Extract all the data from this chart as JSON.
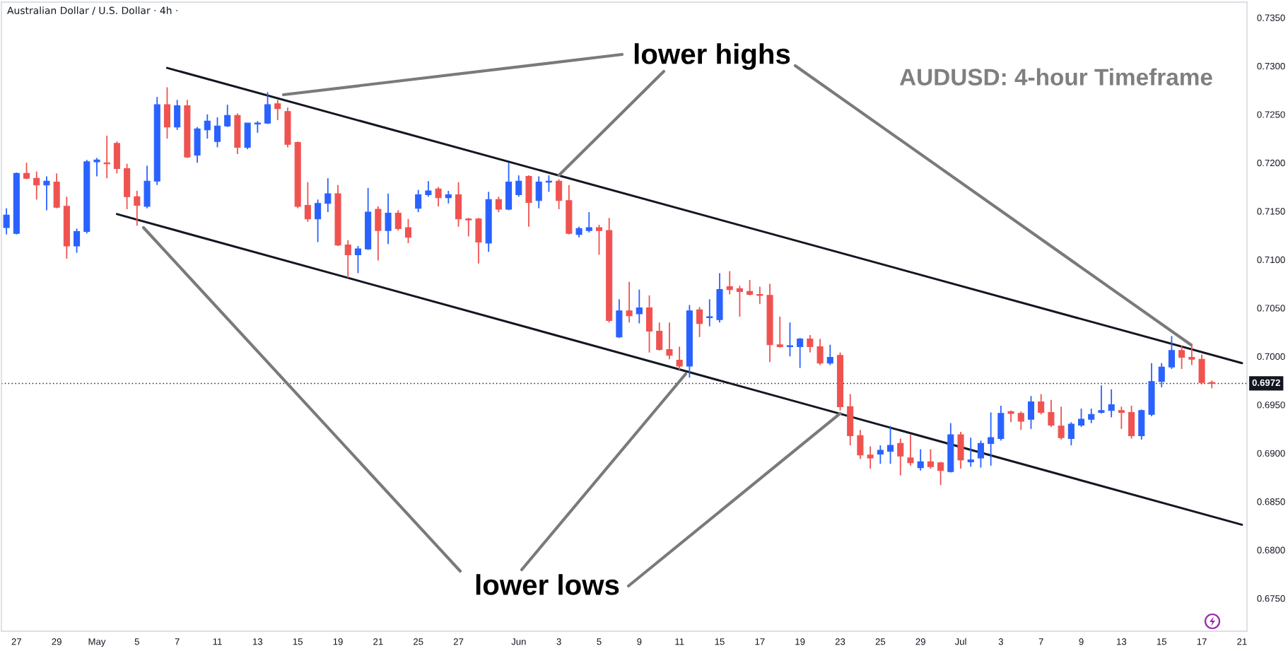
{
  "chart_data": {
    "type": "candlestick",
    "title": "AUDUSD: 4-hour Timeframe",
    "subtitle": "Australian Dollar / U.S. Dollar · 4h ·",
    "categories": [
      null,
      "27",
      null,
      null,
      null,
      "29",
      null,
      null,
      null,
      "May",
      null,
      null,
      null,
      "5",
      null,
      null,
      null,
      "7",
      null,
      null,
      null,
      "11",
      null,
      null,
      null,
      "13",
      null,
      null,
      null,
      "15",
      null,
      null,
      null,
      "19",
      null,
      null,
      null,
      "21",
      null,
      null,
      null,
      "25",
      null,
      null,
      null,
      "27",
      null,
      null,
      null,
      null,
      null,
      "Jun",
      null,
      null,
      null,
      "3",
      null,
      null,
      null,
      "5",
      null,
      null,
      null,
      "9",
      null,
      null,
      null,
      "11",
      null,
      null,
      null,
      "15",
      null,
      null,
      null,
      "17",
      null,
      null,
      null,
      "19",
      null,
      null,
      null,
      "23",
      null,
      null,
      null,
      "25",
      null,
      null,
      null,
      "29",
      null,
      null,
      null,
      "Jul",
      null,
      null,
      null,
      "3",
      null,
      null,
      null,
      "7",
      null,
      null,
      null,
      "9",
      null,
      null,
      null,
      "13",
      null,
      null,
      null,
      "15",
      null,
      null,
      null,
      "17",
      null,
      null,
      null,
      "21"
    ],
    "ohlc": [
      [
        0.7133,
        0.7153,
        0.7126,
        0.7146
      ],
      [
        0.7127,
        0.719,
        0.7126,
        0.7189
      ],
      [
        0.7189,
        0.72,
        0.7183,
        0.7184
      ],
      [
        0.7184,
        0.7191,
        0.7162,
        0.7177
      ],
      [
        0.7177,
        0.7186,
        0.7151,
        0.7181
      ],
      [
        0.718,
        0.7189,
        0.7153,
        0.7154
      ],
      [
        0.7155,
        0.7165,
        0.7101,
        0.7114
      ],
      [
        0.7114,
        0.7132,
        0.7107,
        0.7129
      ],
      [
        0.7129,
        0.7203,
        0.7127,
        0.7201
      ],
      [
        0.7201,
        0.7205,
        0.7186,
        0.7203
      ],
      [
        0.72,
        0.7228,
        0.7184,
        0.7199
      ],
      [
        0.722,
        0.7222,
        0.7189,
        0.7194
      ],
      [
        0.7194,
        0.7199,
        0.7152,
        0.7165
      ],
      [
        0.7165,
        0.7171,
        0.7135,
        0.7156
      ],
      [
        0.7155,
        0.7197,
        0.7153,
        0.7181
      ],
      [
        0.7181,
        0.7268,
        0.7177,
        0.726
      ],
      [
        0.726,
        0.7278,
        0.7225,
        0.7237
      ],
      [
        0.7237,
        0.7265,
        0.7234,
        0.7259
      ],
      [
        0.7259,
        0.7265,
        0.7205,
        0.7206
      ],
      [
        0.7208,
        0.7237,
        0.72,
        0.7235
      ],
      [
        0.7234,
        0.725,
        0.7225,
        0.7243
      ],
      [
        0.7222,
        0.7247,
        0.7216,
        0.7238
      ],
      [
        0.7238,
        0.726,
        0.7237,
        0.7249
      ],
      [
        0.7249,
        0.7251,
        0.7209,
        0.7216
      ],
      [
        0.7216,
        0.7241,
        0.7214,
        0.7241
      ],
      [
        0.724,
        0.7243,
        0.7231,
        0.7241
      ],
      [
        0.7241,
        0.7273,
        0.724,
        0.726
      ],
      [
        0.7261,
        0.7265,
        0.7244,
        0.7256
      ],
      [
        0.7253,
        0.7257,
        0.7216,
        0.7219
      ],
      [
        0.7221,
        0.7222,
        0.7153,
        0.7155
      ],
      [
        0.7156,
        0.718,
        0.7139,
        0.7142
      ],
      [
        0.7142,
        0.7162,
        0.7118,
        0.7158
      ],
      [
        0.7158,
        0.7184,
        0.7149,
        0.7168
      ],
      [
        0.7168,
        0.7177,
        0.7114,
        0.7115
      ],
      [
        0.7115,
        0.712,
        0.7081,
        0.7105
      ],
      [
        0.7105,
        0.7114,
        0.7086,
        0.7111
      ],
      [
        0.7111,
        0.7174,
        0.711,
        0.7149
      ],
      [
        0.7152,
        0.7155,
        0.7099,
        0.713
      ],
      [
        0.713,
        0.7168,
        0.7116,
        0.7148
      ],
      [
        0.7148,
        0.7151,
        0.713,
        0.7132
      ],
      [
        0.7133,
        0.7142,
        0.7117,
        0.7123
      ],
      [
        0.7153,
        0.7172,
        0.7149,
        0.7167
      ],
      [
        0.7167,
        0.7181,
        0.7165,
        0.7171
      ],
      [
        0.7173,
        0.7175,
        0.7155,
        0.7164
      ],
      [
        0.7164,
        0.7171,
        0.7158,
        0.7167
      ],
      [
        0.7167,
        0.718,
        0.7134,
        0.7142
      ],
      [
        0.7142,
        0.7143,
        0.7124,
        0.7141
      ],
      [
        0.7142,
        0.7143,
        0.7096,
        0.7118
      ],
      [
        0.7117,
        0.717,
        0.7108,
        0.7162
      ],
      [
        0.7162,
        0.7165,
        0.7149,
        0.7152
      ],
      [
        0.7152,
        0.72,
        0.7151,
        0.718
      ],
      [
        0.7167,
        0.7187,
        0.7165,
        0.7181
      ],
      [
        0.7186,
        0.7187,
        0.7134,
        0.7159
      ],
      [
        0.7161,
        0.7186,
        0.7153,
        0.718
      ],
      [
        0.718,
        0.7187,
        0.717,
        0.7181
      ],
      [
        0.7181,
        0.7183,
        0.7152,
        0.7161
      ],
      [
        0.7161,
        0.7177,
        0.7126,
        0.7127
      ],
      [
        0.7126,
        0.7134,
        0.7123,
        0.7132
      ],
      [
        0.713,
        0.7149,
        0.7128,
        0.7133
      ],
      [
        0.7133,
        0.7136,
        0.7105,
        0.713
      ],
      [
        0.713,
        0.7143,
        0.7035,
        0.7037
      ],
      [
        0.702,
        0.7059,
        0.7019,
        0.7047
      ],
      [
        0.7047,
        0.7077,
        0.7035,
        0.7042
      ],
      [
        0.7044,
        0.7069,
        0.7034,
        0.705
      ],
      [
        0.705,
        0.7063,
        0.7004,
        0.7026
      ],
      [
        0.7026,
        0.7035,
        0.7006,
        0.7007
      ],
      [
        0.7007,
        0.7035,
        0.6997,
        0.7001
      ],
      [
        0.6996,
        0.701,
        0.6986,
        0.699
      ],
      [
        0.699,
        0.7053,
        0.6978,
        0.7047
      ],
      [
        0.7048,
        0.7051,
        0.702,
        0.7034
      ],
      [
        0.704,
        0.7059,
        0.7031,
        0.7041
      ],
      [
        0.7038,
        0.7086,
        0.7035,
        0.7069
      ],
      [
        0.7072,
        0.7088,
        0.7064,
        0.7069
      ],
      [
        0.707,
        0.7073,
        0.7041,
        0.7067
      ],
      [
        0.7067,
        0.7079,
        0.7063,
        0.7064
      ],
      [
        0.7064,
        0.7072,
        0.7054,
        0.7063
      ],
      [
        0.7063,
        0.7075,
        0.6994,
        0.7012
      ],
      [
        0.7012,
        0.7041,
        0.7009,
        0.701
      ],
      [
        0.701,
        0.7035,
        0.7,
        0.7011
      ],
      [
        0.701,
        0.7019,
        0.6988,
        0.7018
      ],
      [
        0.7018,
        0.7022,
        0.7004,
        0.701
      ],
      [
        0.701,
        0.7018,
        0.6991,
        0.6993
      ],
      [
        0.6993,
        0.7012,
        0.6991,
        0.6999
      ],
      [
        0.7001,
        0.7004,
        0.6944,
        0.6948
      ],
      [
        0.6948,
        0.6961,
        0.6908,
        0.6918
      ],
      [
        0.6918,
        0.6924,
        0.6894,
        0.6898
      ],
      [
        0.6898,
        0.6907,
        0.6884,
        0.6895
      ],
      [
        0.6899,
        0.6908,
        0.6889,
        0.6903
      ],
      [
        0.6902,
        0.6928,
        0.6889,
        0.6908
      ],
      [
        0.691,
        0.6915,
        0.6877,
        0.6897
      ],
      [
        0.6895,
        0.6919,
        0.6887,
        0.689
      ],
      [
        0.6885,
        0.6904,
        0.6882,
        0.6891
      ],
      [
        0.6891,
        0.6904,
        0.6884,
        0.6886
      ],
      [
        0.689,
        0.6891,
        0.6867,
        0.6882
      ],
      [
        0.6881,
        0.6931,
        0.688,
        0.6919
      ],
      [
        0.6919,
        0.6922,
        0.6884,
        0.6893
      ],
      [
        0.6891,
        0.6916,
        0.6886,
        0.6893
      ],
      [
        0.6895,
        0.6913,
        0.6885,
        0.691
      ],
      [
        0.691,
        0.6942,
        0.6887,
        0.6916
      ],
      [
        0.6915,
        0.6949,
        0.6913,
        0.6941
      ],
      [
        0.6943,
        0.6944,
        0.6932,
        0.6941
      ],
      [
        0.6941,
        0.6943,
        0.6924,
        0.6933
      ],
      [
        0.6935,
        0.6959,
        0.6925,
        0.6953
      ],
      [
        0.6953,
        0.6961,
        0.694,
        0.6942
      ],
      [
        0.6942,
        0.6955,
        0.6927,
        0.6929
      ],
      [
        0.6928,
        0.6948,
        0.6914,
        0.6916
      ],
      [
        0.6915,
        0.6932,
        0.6908,
        0.693
      ],
      [
        0.6929,
        0.6946,
        0.6927,
        0.6935
      ],
      [
        0.6935,
        0.6946,
        0.6931,
        0.694
      ],
      [
        0.6942,
        0.697,
        0.6941,
        0.6944
      ],
      [
        0.6944,
        0.6966,
        0.6937,
        0.695
      ],
      [
        0.6944,
        0.6948,
        0.6925,
        0.6942
      ],
      [
        0.6942,
        0.6949,
        0.6915,
        0.6918
      ],
      [
        0.6918,
        0.6945,
        0.6914,
        0.6944
      ],
      [
        0.694,
        0.6993,
        0.6938,
        0.6974
      ],
      [
        0.6974,
        0.6993,
        0.6968,
        0.6989
      ],
      [
        0.6989,
        0.7021,
        0.6987,
        0.7006
      ],
      [
        0.7006,
        0.7011,
        0.6987,
        0.6999
      ],
      [
        0.6999,
        0.7013,
        0.6991,
        0.6997
      ],
      [
        0.6997,
        0.7002,
        0.6971,
        0.6973
      ],
      [
        0.6973,
        0.6975,
        0.6967,
        0.6972
      ],
      null,
      null,
      null
    ],
    "colors": [
      "#2962ff",
      "#2962ff",
      "#ef5350",
      "#ef5350",
      "#2962ff",
      "#ef5350",
      "#ef5350",
      "#2962ff",
      "#2962ff",
      "#2962ff",
      "#ef5350",
      "#ef5350",
      "#ef5350",
      "#ef5350",
      "#2962ff",
      "#2962ff",
      "#ef5350",
      "#2962ff",
      "#ef5350",
      "#2962ff",
      "#2962ff",
      "#2962ff",
      "#2962ff",
      "#ef5350",
      "#2962ff",
      "#2962ff",
      "#2962ff",
      "#ef5350",
      "#ef5350",
      "#ef5350",
      "#ef5350",
      "#2962ff",
      "#2962ff",
      "#ef5350",
      "#ef5350",
      "#2962ff",
      "#2962ff",
      "#ef5350",
      "#2962ff",
      "#ef5350",
      "#ef5350",
      "#2962ff",
      "#2962ff",
      "#ef5350",
      "#2962ff",
      "#ef5350",
      "#ef5350",
      "#ef5350",
      "#2962ff",
      "#ef5350",
      "#2962ff",
      "#2962ff",
      "#ef5350",
      "#2962ff",
      "#2962ff",
      "#ef5350",
      "#ef5350",
      "#2962ff",
      "#2962ff",
      "#ef5350",
      "#ef5350",
      "#2962ff",
      "#ef5350",
      "#2962ff",
      "#ef5350",
      "#ef5350",
      "#ef5350",
      "#ef5350",
      "#2962ff",
      "#ef5350",
      "#2962ff",
      "#2962ff",
      "#ef5350",
      "#ef5350",
      "#ef5350",
      "#ef5350",
      "#ef5350",
      "#ef5350",
      "#2962ff",
      "#2962ff",
      "#ef5350",
      "#ef5350",
      "#2962ff",
      "#ef5350",
      "#ef5350",
      "#ef5350",
      "#ef5350",
      "#2962ff",
      "#2962ff",
      "#ef5350",
      "#ef5350",
      "#2962ff",
      "#ef5350",
      "#ef5350",
      "#2962ff",
      "#ef5350",
      "#2962ff",
      "#2962ff",
      "#2962ff",
      "#2962ff",
      "#ef5350",
      "#ef5350",
      "#2962ff",
      "#ef5350",
      "#ef5350",
      "#ef5350",
      "#2962ff",
      "#2962ff",
      "#2962ff",
      "#2962ff",
      "#2962ff",
      "#ef5350",
      "#ef5350",
      "#2962ff",
      "#2962ff",
      "#2962ff",
      "#2962ff",
      "#ef5350",
      "#ef5350",
      "#ef5350",
      "#ef5350",
      null,
      null,
      null
    ],
    "series": [
      {
        "type": "line",
        "color": "#131722",
        "values": [
          null,
          null,
          null,
          null,
          null,
          null,
          null,
          null,
          null,
          null,
          null,
          null,
          null,
          null,
          null,
          null,
          0.7298,
          null,
          null,
          null,
          null,
          null,
          null,
          null,
          null,
          null,
          null,
          null,
          null,
          null,
          null,
          null,
          null,
          null,
          null,
          null,
          null,
          null,
          null,
          null,
          null,
          null,
          null,
          null,
          null,
          null,
          null,
          null,
          null,
          null,
          null,
          null,
          null,
          null,
          null,
          null,
          null,
          null,
          null,
          null,
          null,
          null,
          null,
          null,
          null,
          null,
          null,
          null,
          null,
          null,
          null,
          null,
          null,
          null,
          null,
          null,
          null,
          null,
          null,
          null,
          null,
          null,
          null,
          null,
          null,
          null,
          null,
          null,
          null,
          null,
          null,
          null,
          null,
          null,
          null,
          null,
          null,
          null,
          null,
          null,
          null,
          null,
          null,
          null,
          null,
          null,
          null,
          null,
          null,
          null,
          null,
          null,
          null,
          null,
          null,
          null,
          null,
          null,
          null,
          null,
          null,
          null,
          null,
          0.6993
        ]
      },
      {
        "type": "line",
        "color": "#131722",
        "values": [
          null,
          null,
          null,
          null,
          null,
          null,
          null,
          null,
          null,
          null,
          null,
          0.7147,
          null,
          null,
          null,
          null,
          null,
          null,
          null,
          null,
          null,
          null,
          null,
          null,
          null,
          null,
          null,
          null,
          null,
          null,
          null,
          null,
          null,
          null,
          null,
          null,
          null,
          null,
          null,
          null,
          null,
          null,
          null,
          null,
          null,
          null,
          null,
          null,
          null,
          null,
          null,
          null,
          null,
          null,
          null,
          null,
          null,
          null,
          null,
          null,
          null,
          null,
          null,
          null,
          null,
          null,
          null,
          null,
          null,
          null,
          null,
          null,
          null,
          null,
          null,
          null,
          null,
          null,
          null,
          null,
          null,
          null,
          null,
          null,
          null,
          null,
          null,
          null,
          null,
          null,
          null,
          null,
          null,
          null,
          null,
          null,
          null,
          null,
          null,
          null,
          null,
          null,
          null,
          null,
          null,
          null,
          null,
          null,
          null,
          null,
          null,
          null,
          null,
          null,
          null,
          null,
          null,
          null,
          null,
          null,
          null,
          null,
          null,
          0.6826
        ]
      }
    ],
    "ylim": [
      0.6716,
      0.7366
    ],
    "yticks": [
      {
        "value": 0.675,
        "label": "0.6750"
      },
      {
        "value": 0.68,
        "label": "0.6800"
      },
      {
        "value": 0.685,
        "label": "0.6850"
      },
      {
        "value": 0.69,
        "label": "0.6900"
      },
      {
        "value": 0.695,
        "label": "0.6950"
      },
      {
        "value": 0.7,
        "label": "0.7000"
      },
      {
        "value": 0.705,
        "label": "0.7050"
      },
      {
        "value": 0.71,
        "label": "0.7100"
      },
      {
        "value": 0.715,
        "label": "0.7150"
      },
      {
        "value": 0.72,
        "label": "0.7200"
      },
      {
        "value": 0.725,
        "label": "0.7250"
      },
      {
        "value": 0.73,
        "label": "0.7300"
      },
      {
        "value": 0.735,
        "label": "0.7350"
      }
    ],
    "ref_lines": [
      {
        "axis": "y",
        "value": 0.6972,
        "label": "0.6972",
        "color": "#131722",
        "line_style": "dotted"
      }
    ],
    "annotations": [
      {
        "text": "lower highs",
        "x": "3",
        "y": 0.7187
      },
      {
        "text": "lower lows",
        "x": "23",
        "y": 0.6941
      }
    ]
  }
}
